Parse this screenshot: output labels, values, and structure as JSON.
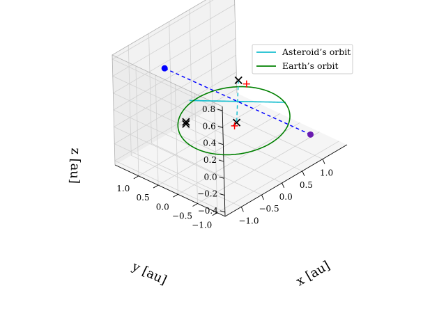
{
  "chart_data": {
    "type": "line3d",
    "projection": "3d",
    "xlabel": "x [au]",
    "ylabel": "y [au]",
    "zlabel": "z [au]",
    "xlim": [
      -1.4,
      1.6
    ],
    "ylim": [
      -1.2,
      1.6
    ],
    "zlim": [
      -0.45,
      0.85
    ],
    "xticks": [
      -1.0,
      -0.5,
      0.0,
      0.5,
      1.0
    ],
    "yticks": [
      -1.0,
      -0.5,
      0.0,
      0.5,
      1.0
    ],
    "zticks": [
      -0.4,
      -0.2,
      0.0,
      0.2,
      0.4,
      0.6,
      0.8
    ],
    "xtick_labels": [
      "−1.0",
      "−0.5",
      "0.0",
      "0.5",
      "1.0"
    ],
    "ytick_labels": [
      "−1.0",
      "−0.5",
      "0.0",
      "0.5",
      "1.0"
    ],
    "ztick_labels": [
      "−0.4",
      "−0.2",
      "0.0",
      "0.2",
      "0.4",
      "0.6",
      "0.8"
    ],
    "grid": true,
    "legend_position": "top-right",
    "series": [
      {
        "name": "Asteroid’s orbit",
        "type": "ellipse3d",
        "color": "#17becf",
        "center": [
          0.15,
          0.05,
          0.2
        ],
        "u": [
          -0.9,
          -0.9,
          0.45
        ],
        "v": [
          0.6,
          -0.6,
          -0.05
        ]
      },
      {
        "name": "Earth’s orbit",
        "type": "ellipse3d",
        "color": "#008000",
        "center": [
          0.05,
          0.05,
          0.0
        ],
        "u": [
          0.8,
          0.8,
          0.0
        ],
        "v": [
          -0.7,
          0.7,
          0.0
        ]
      }
    ],
    "lines": [
      {
        "name": "major-axis",
        "color": "#0000ff",
        "style": "dashed",
        "from": [
          1.05,
          -0.85,
          -0.25
        ],
        "to": [
          -0.75,
          0.95,
          0.65
        ]
      },
      {
        "name": "node-line",
        "color": "#17becf",
        "style": "dashed",
        "from": [
          0.75,
          0.65,
          0.15
        ],
        "to": [
          -0.45,
          -0.55,
          0.25
        ]
      }
    ],
    "points": [
      {
        "name": "aphelion-point",
        "marker": "circle",
        "color": "#0000ff",
        "xyz": [
          -0.75,
          0.95,
          0.65
        ]
      },
      {
        "name": "perihelion-point",
        "marker": "circle",
        "color": "#6a1bb0",
        "xyz": [
          1.05,
          -0.85,
          -0.25
        ]
      },
      {
        "name": "cross-top",
        "marker": "x",
        "color": "#000000",
        "xyz": [
          -0.45,
          -0.55,
          0.25
        ]
      },
      {
        "name": "cross-middle-1",
        "marker": "x",
        "color": "#000000",
        "xyz": [
          -0.55,
          0.65,
          0.0
        ]
      },
      {
        "name": "cross-middle-2",
        "marker": "x",
        "color": "#000000",
        "xyz": [
          -0.5,
          0.7,
          0.0
        ]
      },
      {
        "name": "cross-bottom",
        "marker": "x",
        "color": "#000000",
        "xyz": [
          0.75,
          0.65,
          0.15
        ]
      },
      {
        "name": "plus-top",
        "marker": "plus",
        "color": "#ff0000",
        "xyz": [
          -0.55,
          -0.6,
          0.25
        ]
      },
      {
        "name": "plus-bottom",
        "marker": "plus",
        "color": "#ff0000",
        "xyz": [
          0.85,
          0.55,
          0.1
        ]
      }
    ],
    "legend": [
      {
        "label": "Asteroid’s orbit",
        "color": "#17becf"
      },
      {
        "label": "Earth’s orbit",
        "color": "#008000"
      }
    ]
  }
}
